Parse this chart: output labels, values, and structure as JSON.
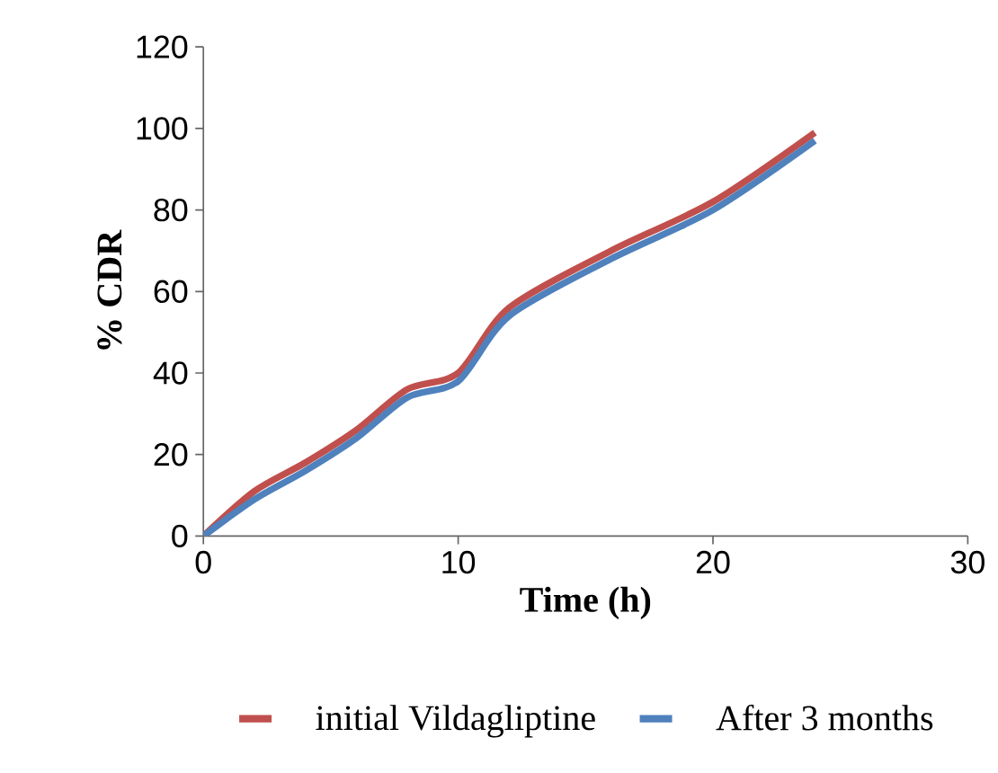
{
  "chart_data": {
    "type": "line",
    "xlabel": "Time (h)",
    "ylabel": "% CDR",
    "x": [
      0,
      2,
      4,
      6,
      8,
      10,
      12,
      16,
      20,
      24
    ],
    "series": [
      {
        "name": "initial Vildagliptine",
        "color": "#c0504d",
        "values": [
          0,
          11,
          18,
          26,
          36,
          40,
          56,
          70,
          82,
          99
        ]
      },
      {
        "name": "After 3 months",
        "color": "#4f81bd",
        "values": [
          0,
          9,
          16,
          24,
          34,
          38,
          54,
          68,
          80,
          97
        ]
      }
    ],
    "xlim": [
      0,
      30
    ],
    "xticks": [
      0,
      10,
      20,
      30
    ],
    "ylim": [
      0,
      120
    ],
    "yticks": [
      0,
      20,
      40,
      60,
      80,
      100,
      120
    ],
    "grid": false,
    "legend": "bottom",
    "marker": "none",
    "line_style": "solid"
  }
}
